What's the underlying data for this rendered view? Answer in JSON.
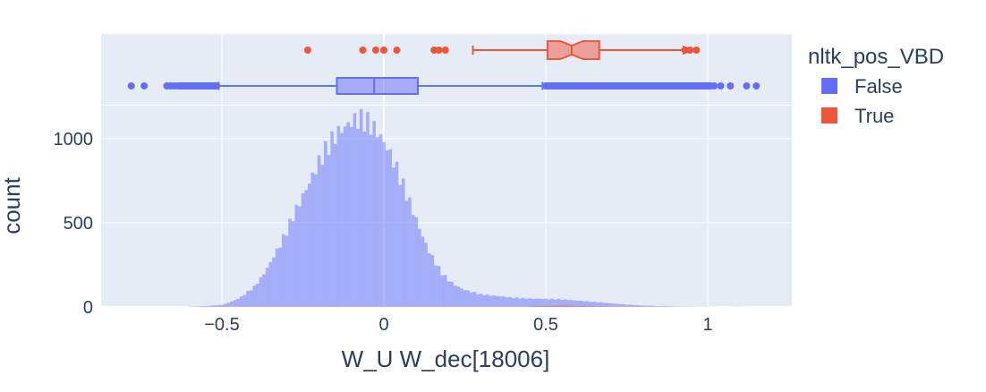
{
  "chart_data": {
    "type": "histogram",
    "xlabel": "W_U W_dec[18006]",
    "ylabel": "count",
    "x_range": [
      -0.87,
      1.26
    ],
    "y_range": [
      0,
      1200
    ],
    "x_ticks": [
      {
        "value": -0.5,
        "label": "−0.5"
      },
      {
        "value": 0,
        "label": "0"
      },
      {
        "value": 0.5,
        "label": "0.5"
      },
      {
        "value": 1,
        "label": "1"
      }
    ],
    "y_ticks": [
      {
        "value": 0,
        "label": "0"
      },
      {
        "value": 500,
        "label": "500"
      },
      {
        "value": 1000,
        "label": "1000"
      }
    ],
    "legend": {
      "title": "nltk_pos_VBD",
      "placement": "right",
      "entries": [
        {
          "name": "False",
          "color": "#636efa"
        },
        {
          "name": "True",
          "color": "#ef553b"
        }
      ]
    },
    "colors": {
      "False": "#636efa",
      "True": "#ef553b",
      "plot_bg": "#e5ecf6",
      "grid": "#ffffff",
      "text": "#2a3f5f"
    },
    "histogram": {
      "bin_width": 0.01,
      "series": [
        {
          "name": "False",
          "bin_centers": [
            -0.6,
            -0.55,
            -0.5,
            -0.48,
            -0.46,
            -0.44,
            -0.42,
            -0.4,
            -0.38,
            -0.36,
            -0.34,
            -0.32,
            -0.3,
            -0.28,
            -0.26,
            -0.24,
            -0.22,
            -0.2,
            -0.18,
            -0.16,
            -0.14,
            -0.12,
            -0.1,
            -0.08,
            -0.06,
            -0.04,
            -0.02,
            0,
            0.02,
            0.04,
            0.06,
            0.08,
            0.1,
            0.12,
            0.14,
            0.16,
            0.18,
            0.2,
            0.22,
            0.24,
            0.26,
            0.28,
            0.3,
            0.35,
            0.4,
            0.45,
            0.5,
            0.55,
            0.6,
            0.65,
            0.7,
            0.75,
            0.8,
            0.85,
            0.9,
            0.95,
            1.0,
            1.05,
            1.1
          ],
          "counts": [
            2,
            5,
            12,
            25,
            40,
            60,
            90,
            120,
            170,
            230,
            300,
            370,
            450,
            540,
            620,
            700,
            780,
            860,
            930,
            990,
            1040,
            1070,
            1100,
            1115,
            1110,
            1080,
            1040,
            980,
            910,
            820,
            720,
            620,
            520,
            420,
            330,
            260,
            200,
            160,
            130,
            110,
            95,
            85,
            75,
            65,
            55,
            50,
            48,
            45,
            38,
            30,
            22,
            14,
            8,
            5,
            3,
            2,
            1,
            0,
            1
          ]
        },
        {
          "name": "True",
          "bin_centers": [
            0.45,
            0.5,
            0.55,
            0.6,
            0.65,
            0.7
          ],
          "counts": [
            3,
            6,
            8,
            6,
            4,
            2
          ]
        }
      ]
    },
    "boxplots": [
      {
        "name": "False",
        "q1": -0.145,
        "median": -0.03,
        "q3": 0.105,
        "lower_fence": -0.51,
        "upper_fence": 0.49,
        "notched": false,
        "outliers": [
          -0.78,
          -0.74,
          -0.67,
          -0.66,
          -0.65,
          -0.64,
          -0.63,
          -0.62,
          -0.61,
          -0.6,
          -0.59,
          -0.58,
          -0.57,
          -0.56,
          -0.55,
          -0.54,
          -0.53,
          -0.52,
          0.5,
          0.52,
          0.54,
          0.56,
          0.58,
          0.6,
          0.62,
          0.64,
          0.66,
          0.68,
          0.7,
          0.72,
          0.74,
          0.76,
          0.78,
          0.8,
          0.82,
          0.84,
          0.86,
          0.88,
          0.9,
          0.92,
          0.94,
          0.96,
          0.98,
          1.0,
          1.02,
          1.04,
          1.07,
          1.12,
          1.15
        ]
      },
      {
        "name": "True",
        "q1": 0.505,
        "median": 0.58,
        "q3": 0.665,
        "lower_fence": 0.275,
        "upper_fence": 0.925,
        "notched": true,
        "notch_low": 0.545,
        "notch_high": 0.615,
        "outliers": [
          -0.235,
          -0.065,
          -0.025,
          0.0,
          0.04,
          0.155,
          0.17,
          0.19,
          0.93,
          0.945,
          0.965
        ]
      }
    ]
  }
}
